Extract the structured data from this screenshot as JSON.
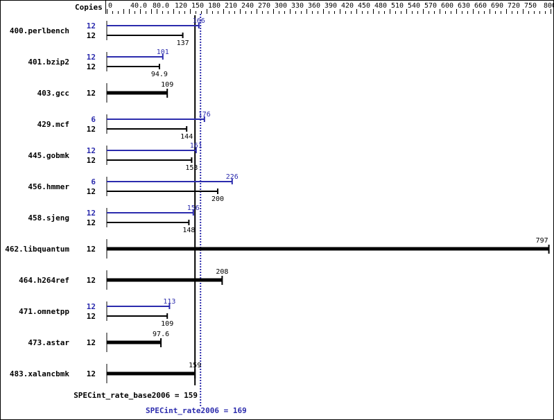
{
  "chart_data": {
    "type": "bar",
    "orientation": "horizontal",
    "header_label": "Copies",
    "xlim": [
      0,
      800
    ],
    "tick_labels": [
      "0",
      "40.0",
      "80.0",
      "120",
      "150",
      "180",
      "210",
      "240",
      "270",
      "300",
      "330",
      "360",
      "390",
      "420",
      "450",
      "480",
      "510",
      "540",
      "570",
      "600",
      "630",
      "660",
      "690",
      "720",
      "750",
      "800"
    ],
    "tick_values": [
      0,
      40,
      80,
      120,
      150,
      180,
      210,
      240,
      270,
      300,
      330,
      360,
      390,
      420,
      450,
      480,
      510,
      540,
      570,
      600,
      630,
      660,
      690,
      720,
      750,
      800
    ],
    "colors": {
      "base": "#000000",
      "peak": "#2b2bad"
    },
    "benchmarks": [
      {
        "name": "400.perlbench",
        "peak_copies": "12",
        "peak": 166,
        "peak_label": "166",
        "base_copies": "12",
        "base": 137,
        "base_label": "137"
      },
      {
        "name": "401.bzip2",
        "peak_copies": "12",
        "peak": 101,
        "peak_label": "101",
        "base_copies": "12",
        "base": 94.9,
        "base_label": "94.9"
      },
      {
        "name": "403.gcc",
        "base_copies": "12",
        "base": 109,
        "base_label": "109"
      },
      {
        "name": "429.mcf",
        "peak_copies": "6",
        "peak": 176,
        "peak_label": "176",
        "base_copies": "12",
        "base": 144,
        "base_label": "144"
      },
      {
        "name": "445.gobmk",
        "peak_copies": "12",
        "peak": 161,
        "peak_label": "161",
        "base_copies": "12",
        "base": 153,
        "base_label": "153"
      },
      {
        "name": "456.hmmer",
        "peak_copies": "6",
        "peak": 226,
        "peak_label": "226",
        "base_copies": "12",
        "base": 200,
        "base_label": "200"
      },
      {
        "name": "458.sjeng",
        "peak_copies": "12",
        "peak": 156,
        "peak_label": "156",
        "base_copies": "12",
        "base": 148,
        "base_label": "148"
      },
      {
        "name": "462.libquantum",
        "base_copies": "12",
        "base": 797,
        "base_label": "797"
      },
      {
        "name": "464.h264ref",
        "base_copies": "12",
        "base": 208,
        "base_label": "208"
      },
      {
        "name": "471.omnetpp",
        "peak_copies": "12",
        "peak": 113,
        "peak_label": "113",
        "base_copies": "12",
        "base": 109,
        "base_label": "109"
      },
      {
        "name": "473.astar",
        "base_copies": "12",
        "base": 97.6,
        "base_label": "97.6"
      },
      {
        "name": "483.xalancbmk",
        "base_copies": "12",
        "base": 159,
        "base_label": "159"
      }
    ],
    "base_summary": {
      "label": "SPECint_rate_base2006 = 159",
      "value": 159
    },
    "peak_summary": {
      "label": "SPECint_rate2006 = 169",
      "value": 169
    }
  }
}
